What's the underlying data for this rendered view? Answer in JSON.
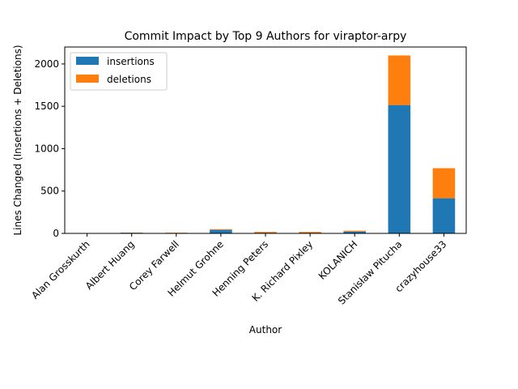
{
  "chart_data": {
    "type": "bar",
    "stacked": true,
    "title": "Commit Impact by Top 9 Authors for viraptor-arpy",
    "xlabel": "Author",
    "ylabel": "Lines Changed (Insertions + Deletions)",
    "ylim": [
      0,
      2200
    ],
    "yticks": [
      0,
      500,
      1000,
      1500,
      2000
    ],
    "grid": false,
    "legend_position": "top-left",
    "categories": [
      "Alan Grosskurth",
      "Albert Huang",
      "Corey Farwell",
      "Helmut Grohne",
      "Henning Peters",
      "K. Richard Pixley",
      "KOLANICH",
      "Stanisław Pitucha",
      "crazyhouse33"
    ],
    "series": [
      {
        "name": "insertions",
        "color": "#1f77b4",
        "values": [
          1,
          8,
          2,
          42,
          8,
          8,
          22,
          1515,
          415
        ]
      },
      {
        "name": "deletions",
        "color": "#ff7f0e",
        "values": [
          1,
          2,
          6,
          8,
          10,
          10,
          10,
          585,
          355
        ]
      }
    ]
  }
}
